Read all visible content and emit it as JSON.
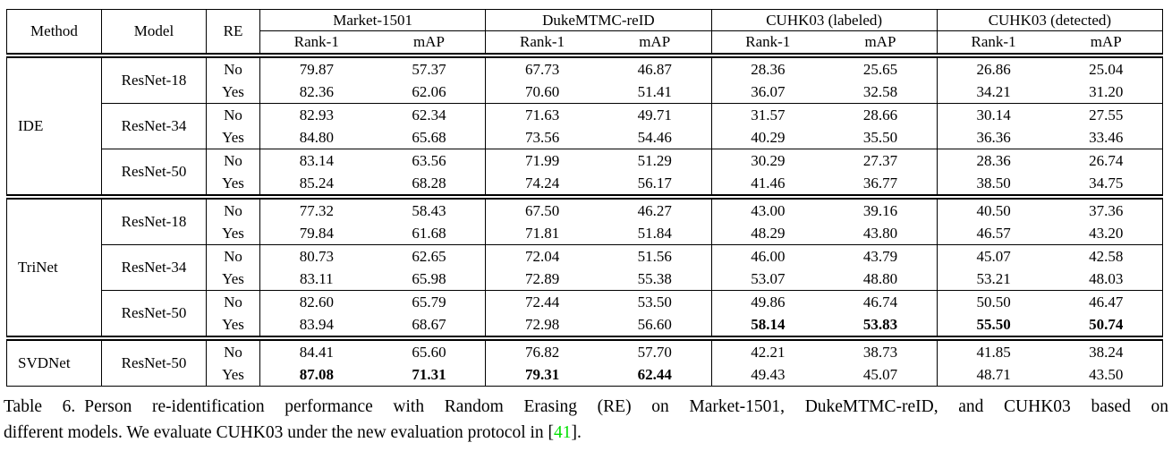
{
  "table": {
    "headers": {
      "method": "Method",
      "model": "Model",
      "re": "RE"
    },
    "groups": [
      "Market-1501",
      "DukeMTMC-reID",
      "CUHK03 (labeled)",
      "CUHK03 (detected)"
    ],
    "subheaders": [
      "Rank-1",
      "mAP"
    ],
    "blocks": [
      {
        "method": "IDE",
        "models": [
          {
            "name": "ResNet-18",
            "rows": [
              {
                "re": "No",
                "values": [
                  "79.87",
                  "57.37",
                  "67.73",
                  "46.87",
                  "28.36",
                  "25.65",
                  "26.86",
                  "25.04"
                ],
                "bold": []
              },
              {
                "re": "Yes",
                "values": [
                  "82.36",
                  "62.06",
                  "70.60",
                  "51.41",
                  "36.07",
                  "32.58",
                  "34.21",
                  "31.20"
                ],
                "bold": []
              }
            ]
          },
          {
            "name": "ResNet-34",
            "rows": [
              {
                "re": "No",
                "values": [
                  "82.93",
                  "62.34",
                  "71.63",
                  "49.71",
                  "31.57",
                  "28.66",
                  "30.14",
                  "27.55"
                ],
                "bold": []
              },
              {
                "re": "Yes",
                "values": [
                  "84.80",
                  "65.68",
                  "73.56",
                  "54.46",
                  "40.29",
                  "35.50",
                  "36.36",
                  "33.46"
                ],
                "bold": []
              }
            ]
          },
          {
            "name": "ResNet-50",
            "rows": [
              {
                "re": "No",
                "values": [
                  "83.14",
                  "63.56",
                  "71.99",
                  "51.29",
                  "30.29",
                  "27.37",
                  "28.36",
                  "26.74"
                ],
                "bold": []
              },
              {
                "re": "Yes",
                "values": [
                  "85.24",
                  "68.28",
                  "74.24",
                  "56.17",
                  "41.46",
                  "36.77",
                  "38.50",
                  "34.75"
                ],
                "bold": []
              }
            ]
          }
        ]
      },
      {
        "method": "TriNet",
        "models": [
          {
            "name": "ResNet-18",
            "rows": [
              {
                "re": "No",
                "values": [
                  "77.32",
                  "58.43",
                  "67.50",
                  "46.27",
                  "43.00",
                  "39.16",
                  "40.50",
                  "37.36"
                ],
                "bold": []
              },
              {
                "re": "Yes",
                "values": [
                  "79.84",
                  "61.68",
                  "71.81",
                  "51.84",
                  "48.29",
                  "43.80",
                  "46.57",
                  "43.20"
                ],
                "bold": []
              }
            ]
          },
          {
            "name": "ResNet-34",
            "rows": [
              {
                "re": "No",
                "values": [
                  "80.73",
                  "62.65",
                  "72.04",
                  "51.56",
                  "46.00",
                  "43.79",
                  "45.07",
                  "42.58"
                ],
                "bold": []
              },
              {
                "re": "Yes",
                "values": [
                  "83.11",
                  "65.98",
                  "72.89",
                  "55.38",
                  "53.07",
                  "48.80",
                  "53.21",
                  "48.03"
                ],
                "bold": []
              }
            ]
          },
          {
            "name": "ResNet-50",
            "rows": [
              {
                "re": "No",
                "values": [
                  "82.60",
                  "65.79",
                  "72.44",
                  "53.50",
                  "49.86",
                  "46.74",
                  "50.50",
                  "46.47"
                ],
                "bold": []
              },
              {
                "re": "Yes",
                "values": [
                  "83.94",
                  "68.67",
                  "72.98",
                  "56.60",
                  "58.14",
                  "53.83",
                  "55.50",
                  "50.74"
                ],
                "bold": [
                  4,
                  5,
                  6,
                  7
                ]
              }
            ]
          }
        ]
      },
      {
        "method": "SVDNet",
        "models": [
          {
            "name": "ResNet-50",
            "rows": [
              {
                "re": "No",
                "values": [
                  "84.41",
                  "65.60",
                  "76.82",
                  "57.70",
                  "42.21",
                  "38.73",
                  "41.85",
                  "38.24"
                ],
                "bold": []
              },
              {
                "re": "Yes",
                "values": [
                  "87.08",
                  "71.31",
                  "79.31",
                  "62.44",
                  "49.43",
                  "45.07",
                  "48.71",
                  "43.50"
                ],
                "bold": [
                  0,
                  1,
                  2,
                  3
                ]
              }
            ]
          }
        ]
      }
    ]
  },
  "caption": {
    "label": "Table 6.",
    "line1": "Person re-identification performance with Random Erasing (RE) on Market-1501, DukeMTMC-reID, and CUHK03 based on",
    "line2_pre": "different models. We evaluate CUHK03 under the new evaluation protocol in [",
    "cite": "41",
    "line2_post": "].",
    "cite_color": "#00e000"
  }
}
